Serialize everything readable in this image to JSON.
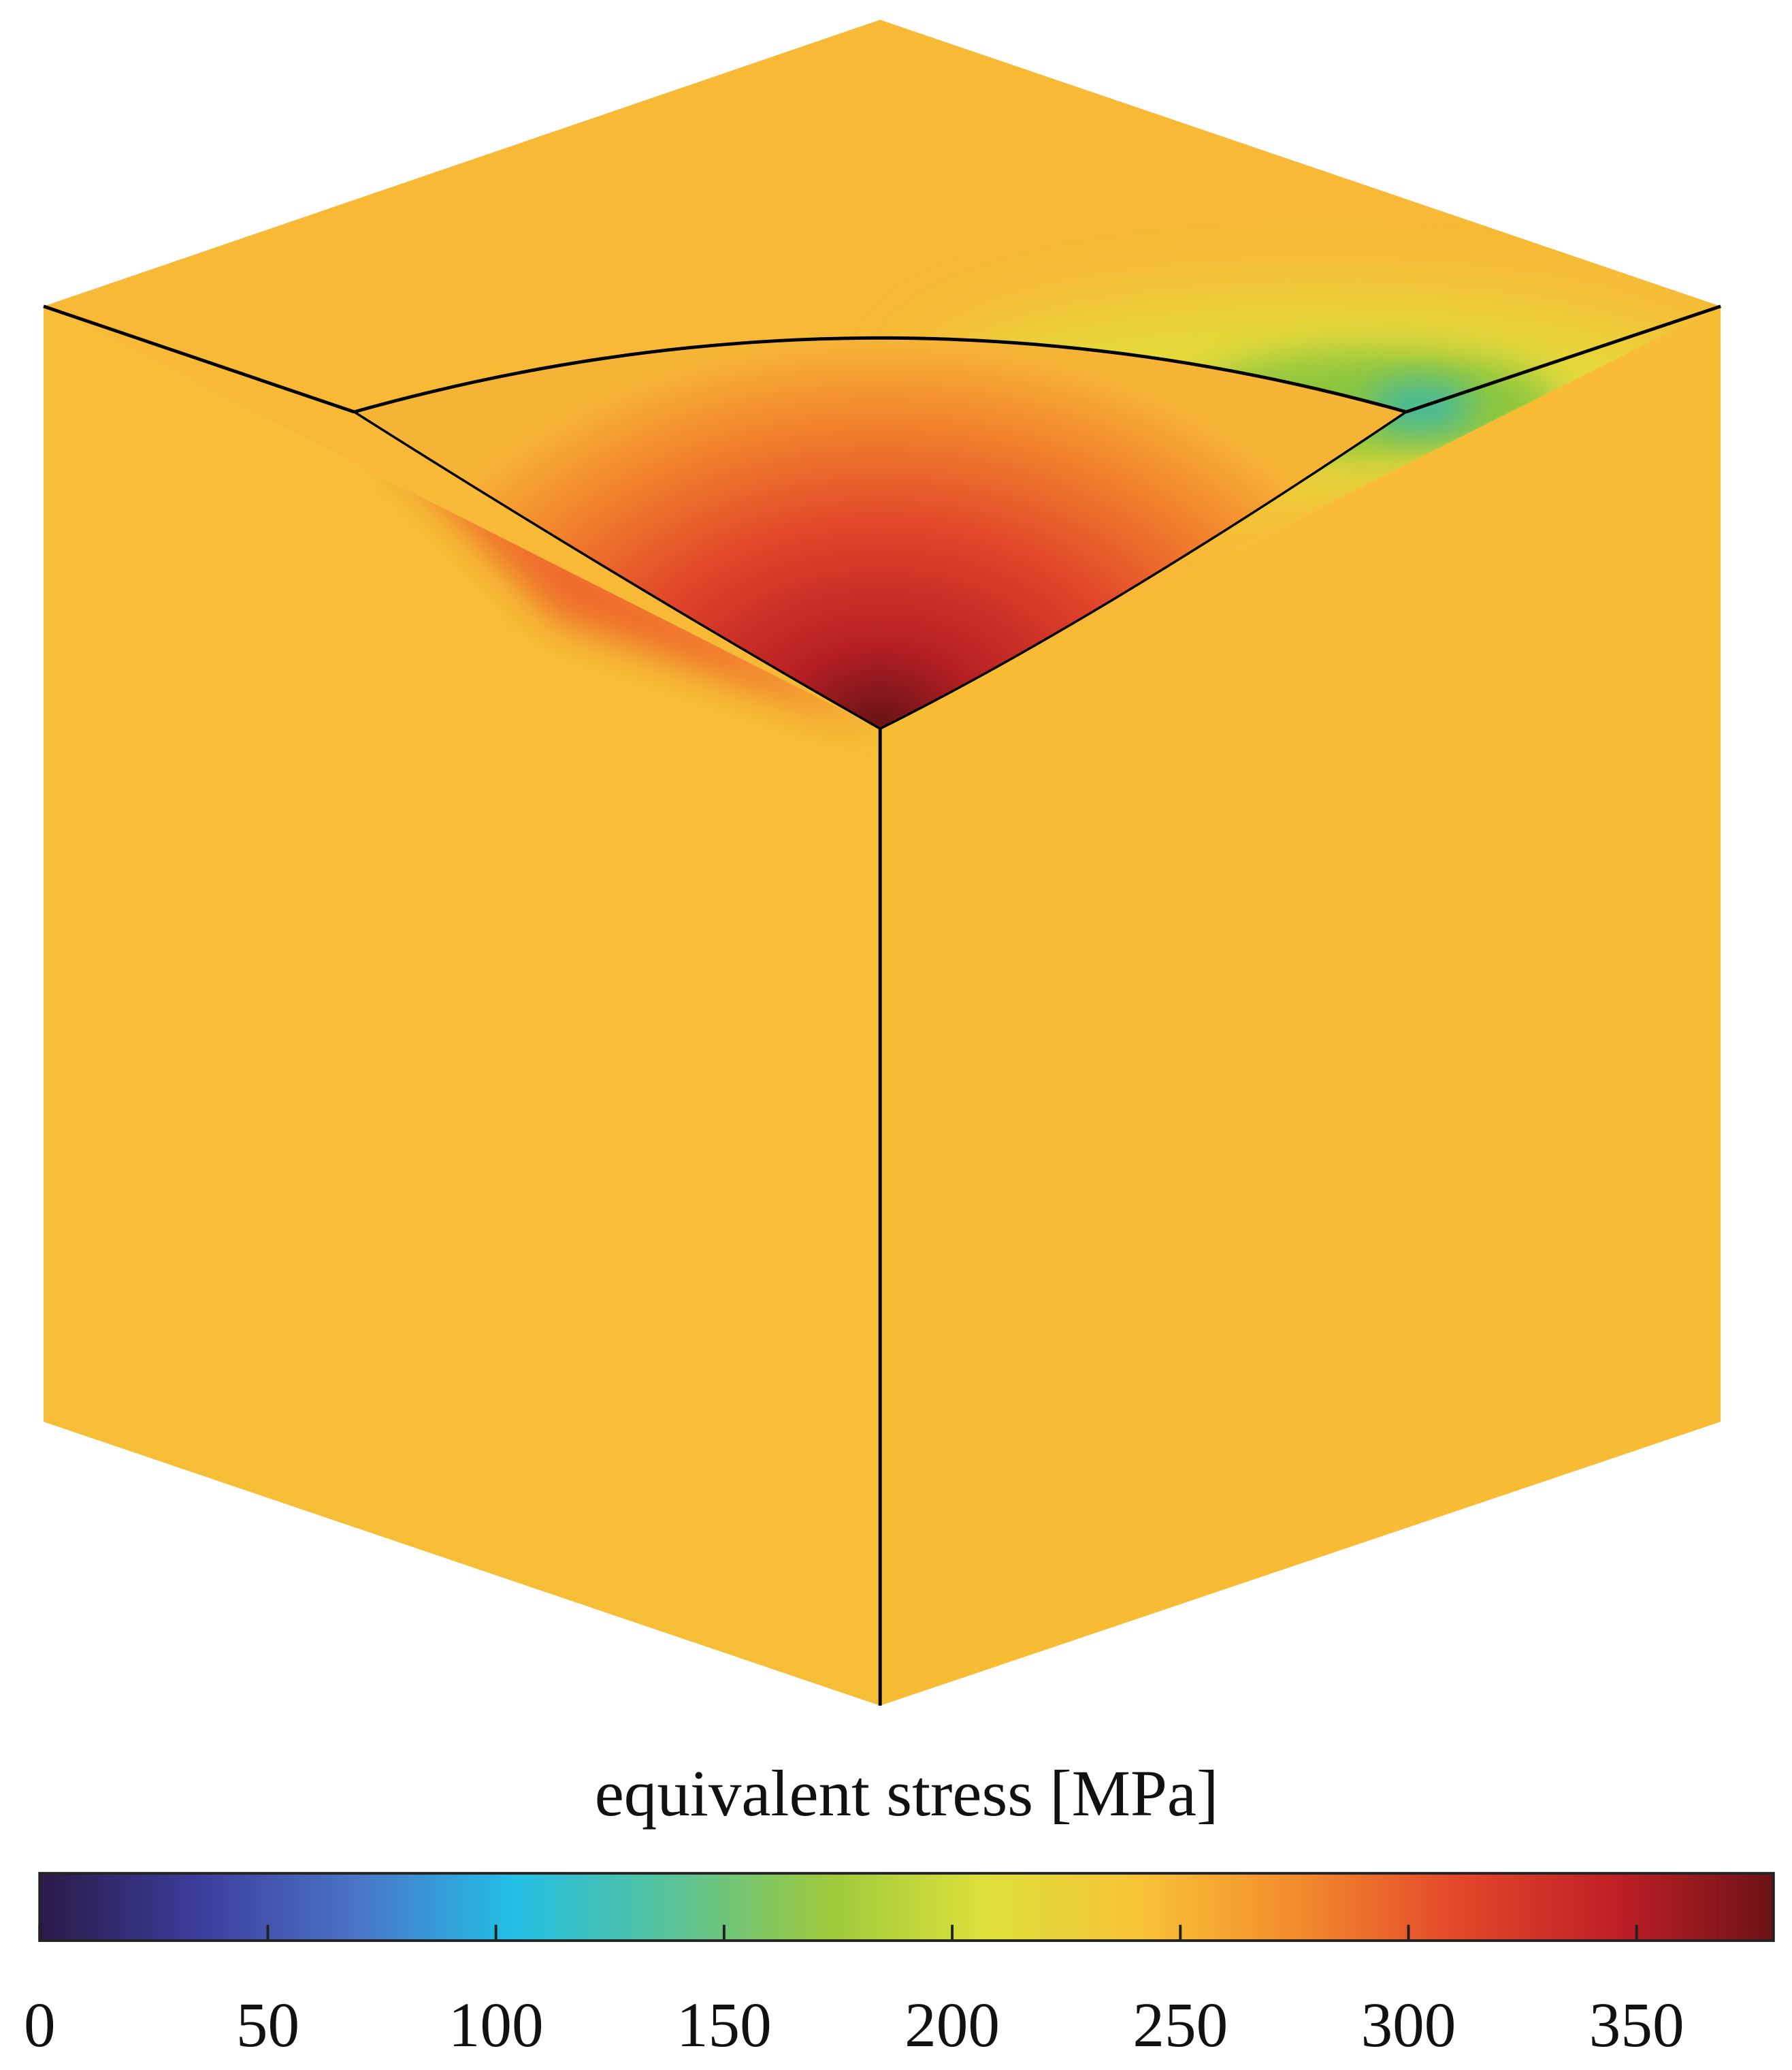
{
  "chart_data": {
    "type": "colorbar-field",
    "colorbar": {
      "label": "equivalent stress [MPa]",
      "clim": [
        0,
        380
      ],
      "ticks": [
        0,
        50,
        100,
        150,
        200,
        250,
        300,
        350
      ],
      "colormap": [
        "#2b1a48",
        "#3b3d9a",
        "#4b73c4",
        "#22bfe6",
        "#58c29a",
        "#9cc93c",
        "#dde03a",
        "#f7c236",
        "#f28a2c",
        "#e4462a",
        "#bf1f26",
        "#6a1316"
      ]
    }
  }
}
